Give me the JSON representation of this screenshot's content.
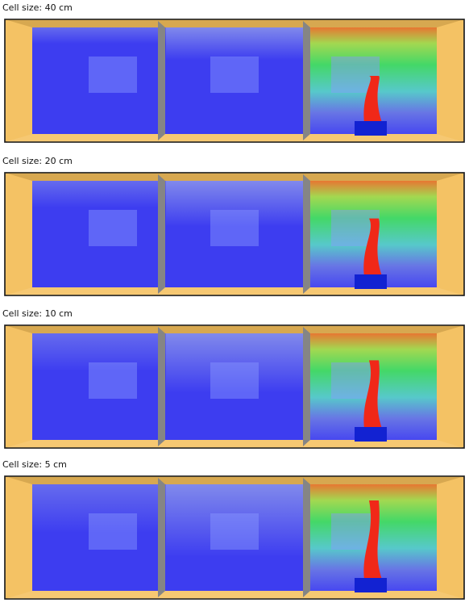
{
  "panels": [
    {
      "label": "Cell size: 40 cm"
    },
    {
      "label": "Cell size: 20 cm"
    },
    {
      "label": "Cell size: 10 cm"
    },
    {
      "label": "Cell size: 5 cm"
    }
  ]
}
